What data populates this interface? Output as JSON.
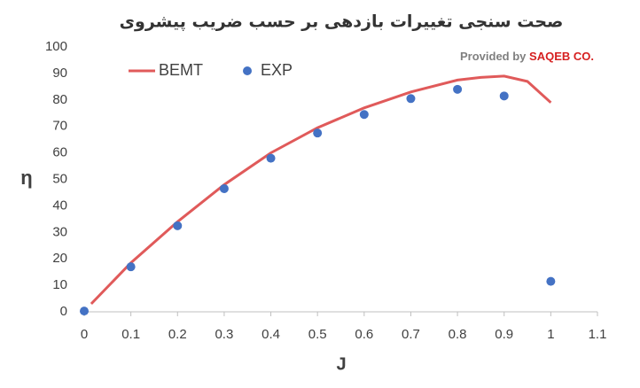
{
  "chart_data": {
    "type": "line",
    "title": "صحت سنجی تغییرات بازدهی بر حسب ضریب پیشروی",
    "annotation": {
      "prefix": "Provided by",
      "brand": "SAQEB CO."
    },
    "x_label": "J",
    "y_label": "η",
    "xlim": [
      0,
      1.1
    ],
    "xticks": [
      0,
      0.1,
      0.2,
      0.3,
      0.4,
      0.5,
      0.6,
      0.7,
      0.8,
      0.9,
      1,
      1.1
    ],
    "ylim": [
      0,
      100
    ],
    "yticks": [
      0,
      10,
      20,
      30,
      40,
      50,
      60,
      70,
      80,
      90,
      100
    ],
    "grid": false,
    "legend": "top-left",
    "series": [
      {
        "name": "BEMT",
        "style": "line",
        "color": "#e05a5a",
        "x": [
          0.015,
          0.1,
          0.2,
          0.3,
          0.4,
          0.5,
          0.6,
          0.7,
          0.8,
          0.85,
          0.9,
          0.95,
          1.0
        ],
        "values": [
          3,
          18.5,
          34,
          48,
          60,
          69.5,
          77,
          83,
          87.5,
          88.5,
          89,
          87,
          79
        ]
      },
      {
        "name": "EXP",
        "style": "marker",
        "color": "#4472c4",
        "x": [
          0,
          0.1,
          0.2,
          0.3,
          0.4,
          0.5,
          0.6,
          0.7,
          0.8,
          0.9,
          1.0
        ],
        "values": [
          0.3,
          17,
          32.5,
          46.5,
          58,
          67.5,
          74.5,
          80.5,
          84,
          81.5,
          11.5
        ]
      }
    ]
  }
}
